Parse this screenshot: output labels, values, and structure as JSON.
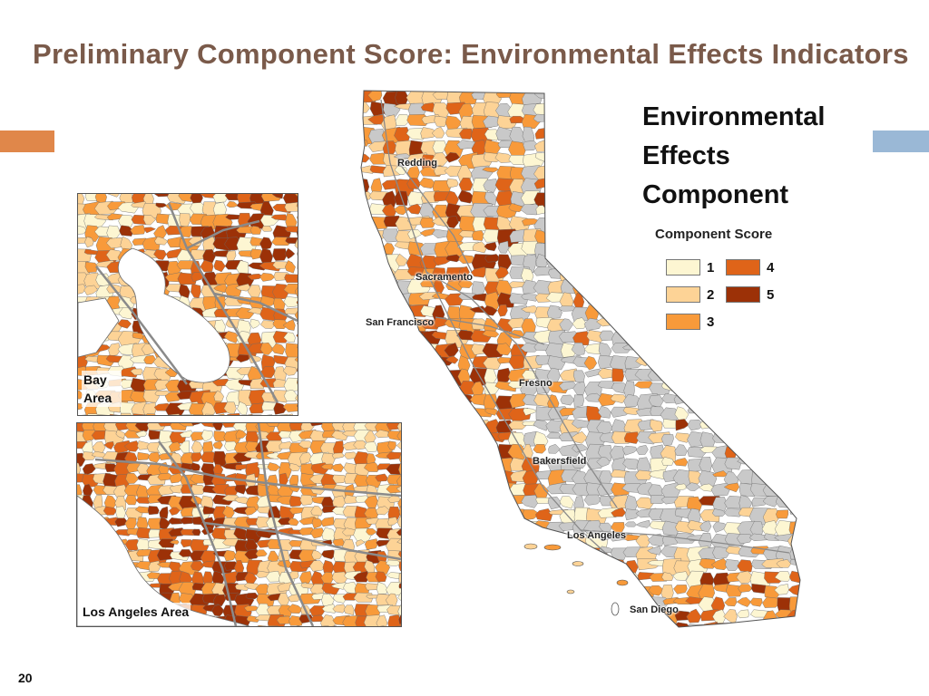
{
  "slide": {
    "title": "Preliminary Component Score: Environmental Effects Indicators",
    "number": "20",
    "accent_left_color": "#e0874a",
    "accent_right_color": "#9ab8d6"
  },
  "legend": {
    "heading_lines": [
      "Environmental",
      "Effects",
      "Component"
    ],
    "subtitle": "Component Score",
    "items": [
      {
        "value": "1",
        "color": "#fdf6d2"
      },
      {
        "value": "2",
        "color": "#fdd396"
      },
      {
        "value": "3",
        "color": "#f89a3a"
      },
      {
        "value": "4",
        "color": "#df6419"
      },
      {
        "value": "5",
        "color": "#9c3107"
      }
    ]
  },
  "cities": [
    {
      "name": "Redding"
    },
    {
      "name": "Sacramento"
    },
    {
      "name": "San Francisco"
    },
    {
      "name": "Fresno"
    },
    {
      "name": "Bakersfield"
    },
    {
      "name": "Los Angeles"
    },
    {
      "name": "San Diego"
    }
  ],
  "insets": {
    "bay_area": {
      "label": "Bay Area"
    },
    "los_angeles": {
      "label": "Los Angeles Area"
    }
  },
  "map_colors": {
    "no_data": "#c9c9c9",
    "border": "#6a6a6a",
    "water": "#ffffff",
    "roads": "#8a8a8a"
  }
}
